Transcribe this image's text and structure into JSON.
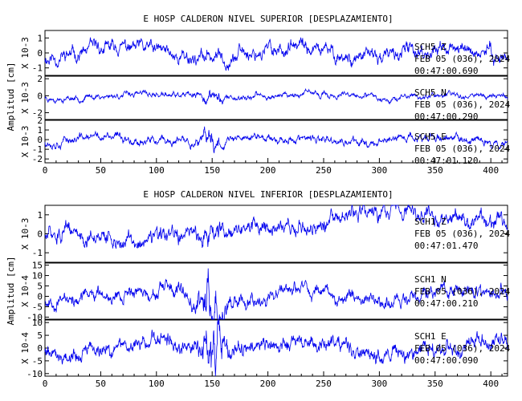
{
  "x_ticks": [
    "0",
    "50",
    "100",
    "150",
    "200",
    "250",
    "300",
    "350",
    "400"
  ],
  "chart_data": [
    {
      "type": "line",
      "title": "E HOSP CALDERON NIVEL SUPERIOR [DESPLAZAMIENTO]",
      "ylabel": "Amplitud [cm]",
      "xlim": [
        0,
        415
      ],
      "series": [
        {
          "name": "SCH5 Z",
          "scale_label": "X 10-3",
          "ylim": [
            -1.5,
            1.5
          ],
          "y_ticks": [
            "1",
            "0",
            "-1"
          ],
          "color": "#0000ee",
          "amp": 0.5,
          "burst": 0,
          "seed": 11,
          "tilt": 0,
          "info": [
            "SCH5   Z",
            "FEB 05 (036), 2024",
            "00:47:00.690"
          ]
        },
        {
          "name": "SCH5 N",
          "scale_label": "X 10-3",
          "ylim": [
            -2.8,
            2.3
          ],
          "y_ticks": [
            "2",
            "0",
            "-2"
          ],
          "color": "#0000ee",
          "amp": 0.35,
          "burst": 1.7,
          "seed": 23,
          "tilt": 0,
          "info": [
            "SCH5   N",
            "FEB 05 (036), 2024",
            "00:47:00.290"
          ]
        },
        {
          "name": "SCH5 E",
          "scale_label": "X 10-3",
          "ylim": [
            -2.4,
            2.0
          ],
          "y_ticks": [
            "2",
            "1",
            "0",
            "-1",
            "-2"
          ],
          "color": "#0000ee",
          "amp": 0.45,
          "burst": 1.5,
          "seed": 37,
          "tilt": 0,
          "info": [
            "SCH5   E",
            "FEB 05 (036), 2024",
            "00:47:01.120"
          ]
        }
      ],
      "x_ticks": [
        "0",
        "50",
        "100",
        "150",
        "200",
        "250",
        "300",
        "350",
        "400"
      ]
    },
    {
      "type": "line",
      "title": "E HOSP CALDERON NIVEL INFERIOR [DESPLAZAMIENTO]",
      "ylabel": "Amplitud [cm]",
      "xlim": [
        0,
        415
      ],
      "series": [
        {
          "name": "SCH1 Z",
          "scale_label": "X 10-3",
          "ylim": [
            -1.5,
            1.5
          ],
          "y_ticks": [
            "1",
            "0",
            "-1"
          ],
          "color": "#0000ee",
          "amp": 0.45,
          "burst": 0.5,
          "seed": 51,
          "tilt": 0.9,
          "info": [
            "SCH1   Z",
            "FEB 05 (036), 2024",
            "00:47:01.470"
          ]
        },
        {
          "name": "SCH1 N",
          "scale_label": "X 10-4",
          "ylim": [
            -11,
            16
          ],
          "y_ticks": [
            "15",
            "10",
            "5",
            "0",
            "-5",
            "-10"
          ],
          "color": "#0000ee",
          "amp": 3.5,
          "burst": 4,
          "seed": 67,
          "tilt": 0,
          "info": [
            "SCH1   N",
            "FEB 05 (036), 2024",
            "00:47:00.210"
          ]
        },
        {
          "name": "SCH1 E",
          "scale_label": "X 10-4",
          "ylim": [
            -11,
            11
          ],
          "y_ticks": [
            "10",
            "5",
            "0",
            "-5",
            "-10"
          ],
          "color": "#0000ee",
          "amp": 3.2,
          "burst": 3.5,
          "seed": 79,
          "tilt": 0,
          "info": [
            "SCH1   E",
            "FEB 05 (036), 2024",
            "00:47:00.090"
          ]
        }
      ],
      "x_ticks": [
        "0",
        "50",
        "100",
        "150",
        "200",
        "250",
        "300",
        "350",
        "400"
      ]
    }
  ]
}
